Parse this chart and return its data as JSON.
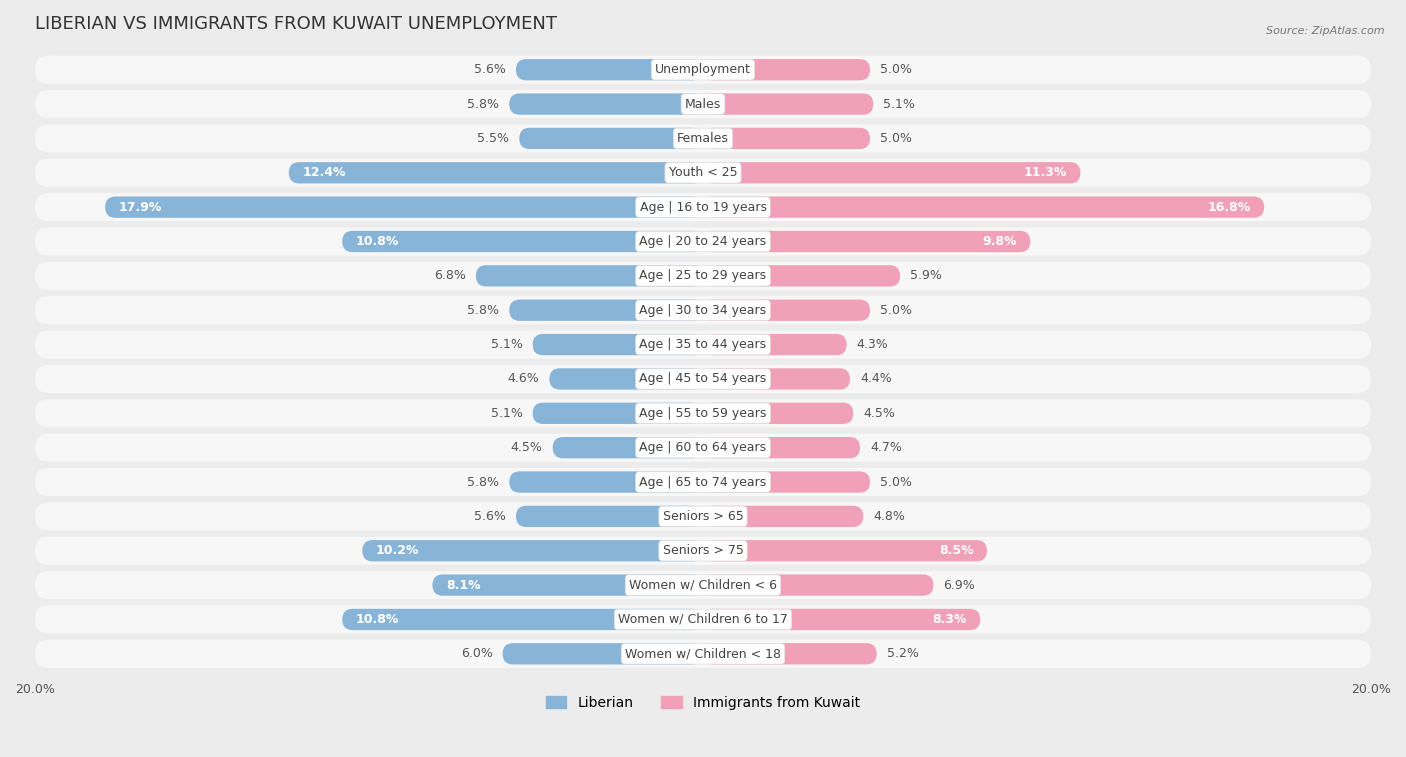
{
  "title": "LIBERIAN VS IMMIGRANTS FROM KUWAIT UNEMPLOYMENT",
  "source": "Source: ZipAtlas.com",
  "categories": [
    "Unemployment",
    "Males",
    "Females",
    "Youth < 25",
    "Age | 16 to 19 years",
    "Age | 20 to 24 years",
    "Age | 25 to 29 years",
    "Age | 30 to 34 years",
    "Age | 35 to 44 years",
    "Age | 45 to 54 years",
    "Age | 55 to 59 years",
    "Age | 60 to 64 years",
    "Age | 65 to 74 years",
    "Seniors > 65",
    "Seniors > 75",
    "Women w/ Children < 6",
    "Women w/ Children 6 to 17",
    "Women w/ Children < 18"
  ],
  "liberian": [
    5.6,
    5.8,
    5.5,
    12.4,
    17.9,
    10.8,
    6.8,
    5.8,
    5.1,
    4.6,
    5.1,
    4.5,
    5.8,
    5.6,
    10.2,
    8.1,
    10.8,
    6.0
  ],
  "kuwait": [
    5.0,
    5.1,
    5.0,
    11.3,
    16.8,
    9.8,
    5.9,
    5.0,
    4.3,
    4.4,
    4.5,
    4.7,
    5.0,
    4.8,
    8.5,
    6.9,
    8.3,
    5.2
  ],
  "liberian_color": "#88b4d8",
  "kuwait_color": "#f0a0b8",
  "axis_max": 20.0,
  "background_color": "#ececec",
  "row_color": "#f7f7f7",
  "title_fontsize": 13,
  "value_fontsize": 9,
  "label_fontsize": 9,
  "legend_label_liberian": "Liberian",
  "legend_label_kuwait": "Immigrants from Kuwait"
}
